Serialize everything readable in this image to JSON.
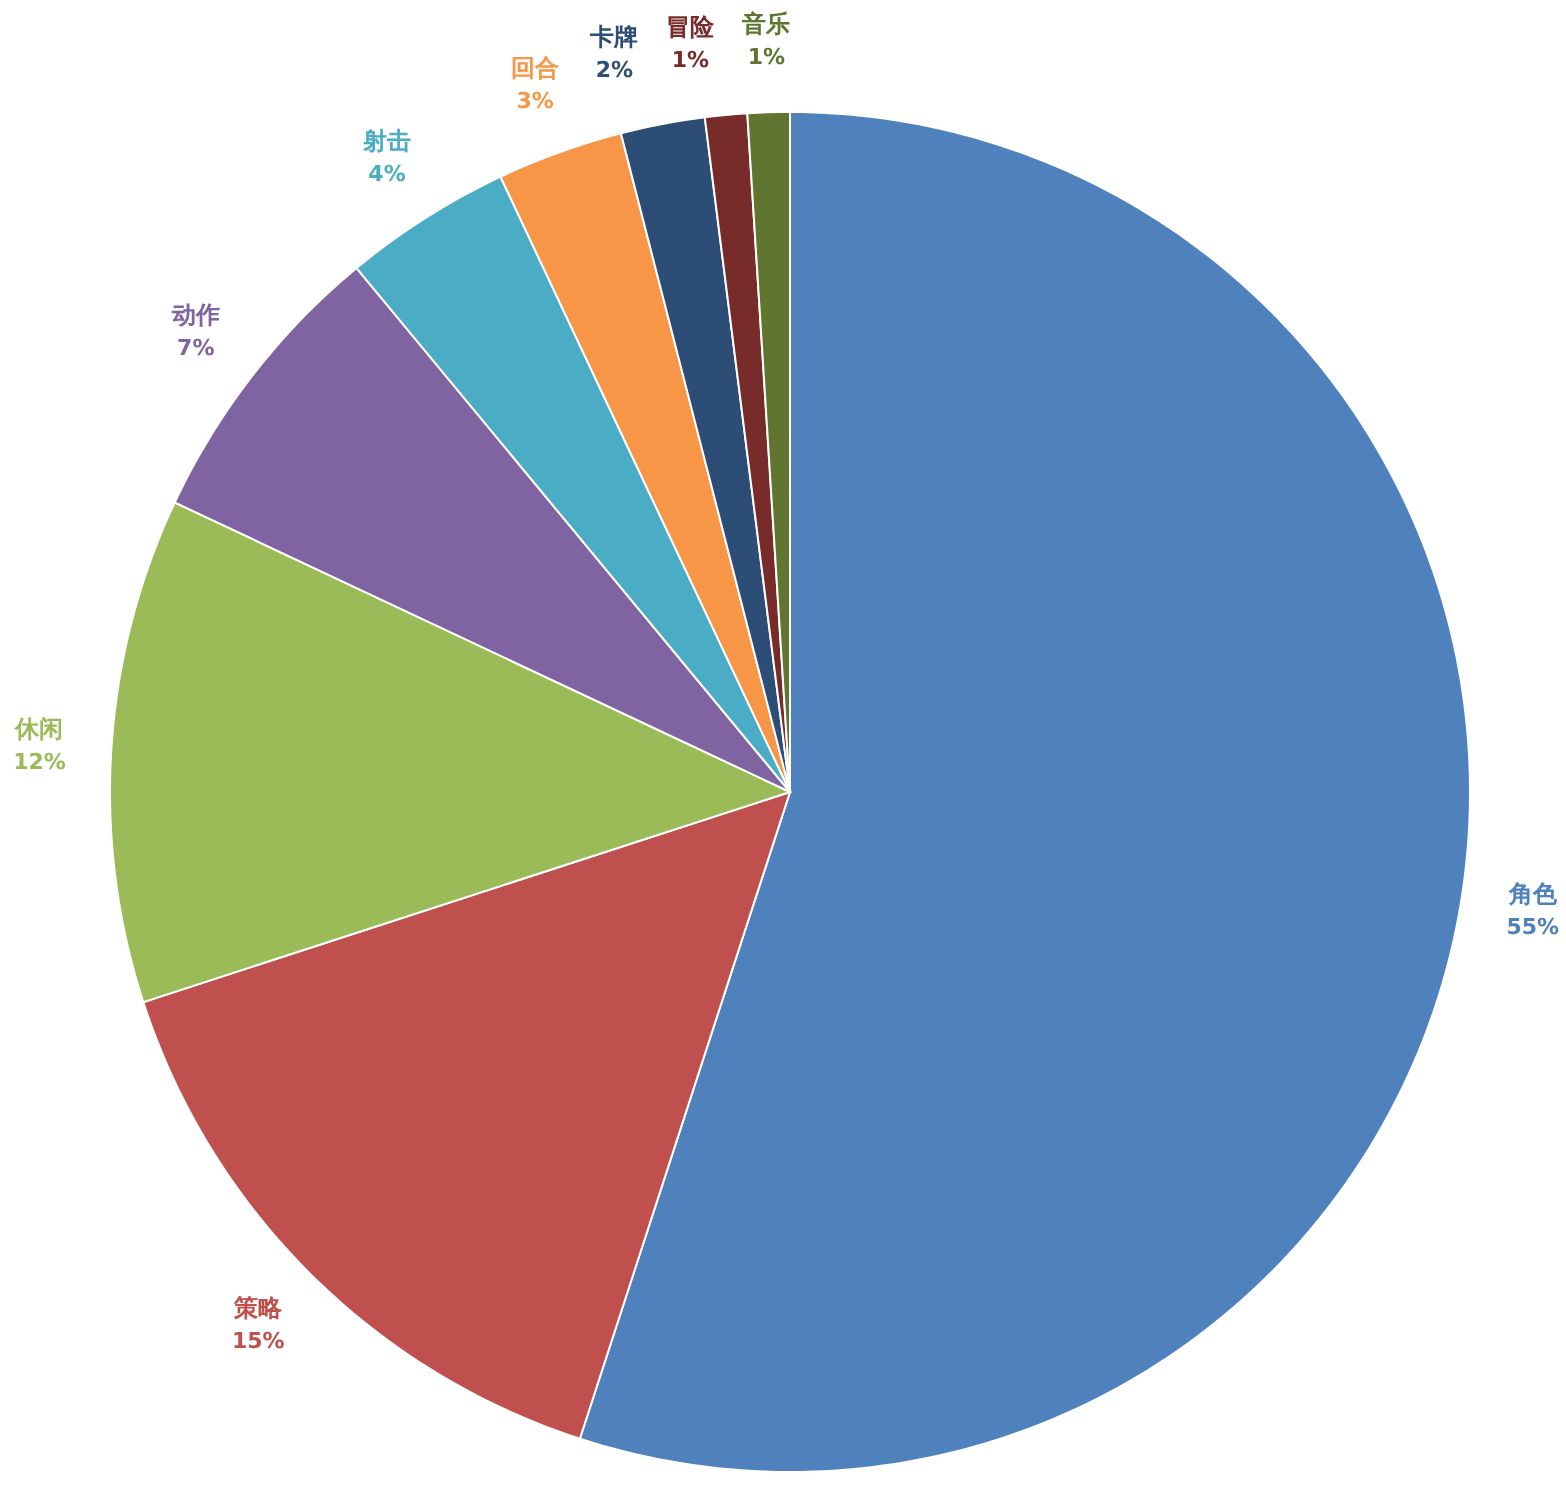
{
  "chart_data": {
    "type": "pie",
    "categories": [
      "角色",
      "策略",
      "休闲",
      "动作",
      "射击",
      "回合",
      "卡牌",
      "冒险",
      "音乐"
    ],
    "values": [
      55,
      15,
      12,
      7,
      4,
      3,
      2,
      1,
      1
    ],
    "value_labels": [
      "55%",
      "15%",
      "12%",
      "7%",
      "4%",
      "3%",
      "2%",
      "1%",
      "1%"
    ],
    "colors": [
      "#4f81bd",
      "#c0504d",
      "#9bbb59",
      "#8064a2",
      "#4bacc6",
      "#f79646",
      "#2c4d75",
      "#772c2a",
      "#5f7530"
    ]
  }
}
